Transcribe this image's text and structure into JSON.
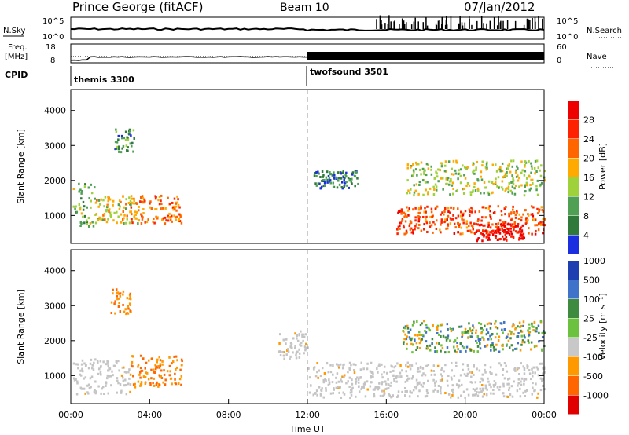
{
  "header": {
    "station": "Prince George (fitACF)",
    "beam": "Beam 10",
    "date": "07/Jan/2012"
  },
  "panels": {
    "noise": {
      "left_label": "N.Sky",
      "left_ticks": [
        "10^5",
        "10^0"
      ],
      "right_ticks": [
        "10^5",
        "10^0"
      ],
      "right_label": "N.Search"
    },
    "freq": {
      "left_label_1": "Freq.",
      "left_label_2": "[MHz]",
      "left_ticks": [
        "18",
        "8"
      ],
      "right_ticks": [
        "60",
        "0"
      ],
      "right_label": "Nave"
    },
    "cpid": {
      "label": "CPID",
      "program_1": "themis 3300",
      "program_2": "twofsound 3501"
    }
  },
  "colors": {
    "power_scale": [
      "#1c2fe0",
      "#2f7a3a",
      "#4fa052",
      "#9fd23a",
      "#ffaa00",
      "#ff6600",
      "#ff2200",
      "#ee0000"
    ],
    "velocity_scale": [
      "#1e3fb0",
      "#3f73c9",
      "#3e8a3e",
      "#6cc23e",
      "#c8c8c8",
      "#ff9900",
      "#ff6600",
      "#e00000"
    ],
    "ground_scatter": "#c4c4c4"
  },
  "chart_data": [
    {
      "type": "heatmap",
      "name": "power",
      "ylabel": "Slant Range [km]",
      "yticks": [
        "1000",
        "2000",
        "3000",
        "4000"
      ],
      "ylim": [
        200,
        4600
      ],
      "colorbar_label": "Power [dB]",
      "colorbar_ticks": [
        "4",
        "8",
        "12",
        "16",
        "20",
        "24",
        "28"
      ],
      "colorbar_range": [
        0,
        32
      ],
      "xlim": [
        "00:00",
        "24:00"
      ],
      "regions": [
        {
          "t": [
            0.1,
            1.2
          ],
          "r": [
            700,
            2000
          ],
          "level": 12
        },
        {
          "t": [
            1.2,
            3.4
          ],
          "r": [
            800,
            1600
          ],
          "level": 16
        },
        {
          "t": [
            3.0,
            5.6
          ],
          "r": [
            800,
            1600
          ],
          "level": 22
        },
        {
          "t": [
            2.2,
            3.2
          ],
          "r": [
            2800,
            3500
          ],
          "level": 8
        },
        {
          "t": [
            16.5,
            24.0
          ],
          "r": [
            500,
            1300
          ],
          "level": 24
        },
        {
          "t": [
            20.4,
            23.0
          ],
          "r": [
            300,
            800
          ],
          "level": 30
        },
        {
          "t": [
            17.0,
            24.0
          ],
          "r": [
            1600,
            2600
          ],
          "level": 14
        },
        {
          "t": [
            12.3,
            14.6
          ],
          "r": [
            1800,
            2300
          ],
          "level": 6
        }
      ]
    },
    {
      "type": "heatmap",
      "name": "velocity",
      "ylabel": "Slant Range [km]",
      "yticks": [
        "1000",
        "2000",
        "3000",
        "4000"
      ],
      "ylim": [
        200,
        4600
      ],
      "xlabel": "Time UT",
      "xticks": [
        "00:00",
        "04:00",
        "08:00",
        "12:00",
        "16:00",
        "20:00",
        "00:00"
      ],
      "xlim": [
        "00:00",
        "24:00"
      ],
      "colorbar_label": "Velocity [m s⁻¹]",
      "colorbar_ticks": [
        "1000",
        "500",
        "100",
        "25",
        "-25",
        "-100",
        "-500",
        "-1000"
      ],
      "regions": [
        {
          "t": [
            0.1,
            3.0
          ],
          "r": [
            500,
            1500
          ],
          "level": 0
        },
        {
          "t": [
            3.0,
            5.6
          ],
          "r": [
            700,
            1600
          ],
          "level": -300
        },
        {
          "t": [
            12.0,
            24.0
          ],
          "r": [
            400,
            1400
          ],
          "level": 0
        },
        {
          "t": [
            16.8,
            24.0
          ],
          "r": [
            1700,
            2600
          ],
          "level": 200
        },
        {
          "t": [
            2.0,
            3.0
          ],
          "r": [
            2800,
            3500
          ],
          "level": -300
        },
        {
          "t": [
            10.5,
            12.0
          ],
          "r": [
            1500,
            2300
          ],
          "level": 0
        }
      ]
    }
  ]
}
